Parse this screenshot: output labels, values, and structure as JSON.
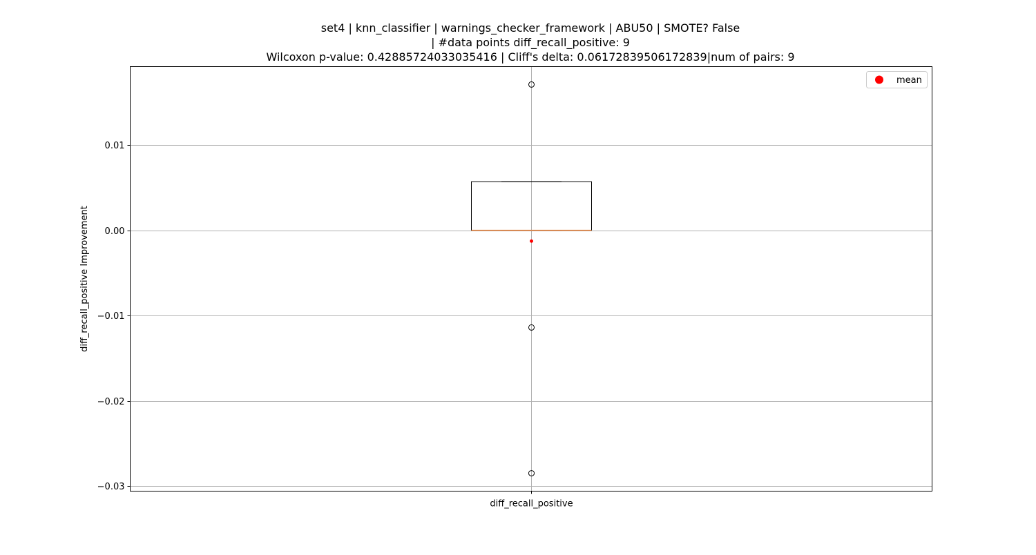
{
  "chart_data": {
    "type": "box",
    "title_lines": [
      "set4 | knn_classifier | warnings_checker_framework | ABU50 | SMOTE? False",
      "| #data points diff_recall_positive: 9",
      "Wilcoxon p-value: 0.42885724033035416 | Cliff's delta: 0.06172839506172839|num of pairs: 9"
    ],
    "xlabel": "",
    "ylabel": "diff_recall_positive Improvement",
    "categories": [
      "diff_recall_positive"
    ],
    "ylim": [
      -0.0306,
      0.0192
    ],
    "yticks": [
      {
        "value": 0.01,
        "label": "0.01"
      },
      {
        "value": 0.0,
        "label": "0.00"
      },
      {
        "value": -0.01,
        "label": "−0.01"
      },
      {
        "value": -0.02,
        "label": "−0.02"
      },
      {
        "value": -0.03,
        "label": "−0.03"
      }
    ],
    "grid": true,
    "legend": {
      "placement": "top-right",
      "entries": [
        {
          "label": "mean",
          "color": "#ff0000",
          "marker": "circle"
        }
      ]
    },
    "boxes": [
      {
        "category": "diff_recall_positive",
        "q1": 0.0,
        "median": 0.0,
        "q3": 0.0057,
        "whisker_low": 0.0,
        "whisker_high": 0.0057,
        "mean": -0.00127,
        "outliers": [
          0.0171,
          -0.0114,
          -0.0285
        ]
      }
    ],
    "colors": {
      "box": "#000000",
      "median": "#e8803a",
      "mean": "#ff0000",
      "grid": "#b0b0b0",
      "outlier_edge": "#000000"
    }
  }
}
